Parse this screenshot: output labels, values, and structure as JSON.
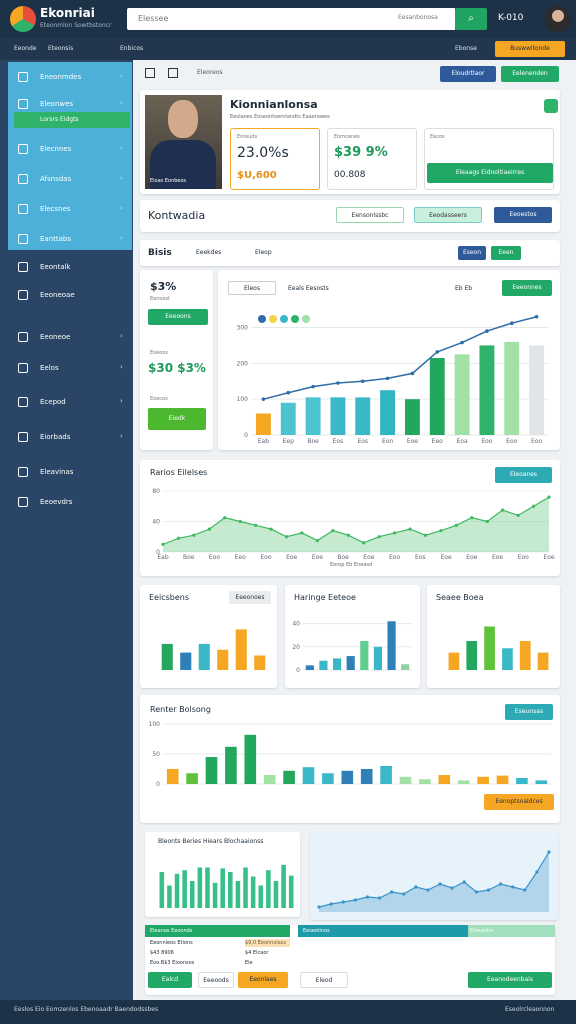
{
  "header": {
    "brand": "Ekonriai",
    "tagline": "Eteonmlon Sowtbstoncr",
    "search_placeholder": "Elessee",
    "search_hint": "Eesanbonosa",
    "user": "K-010"
  },
  "topnav": {
    "items": [
      "Eeonde",
      "Eteonsis",
      "Enbicos"
    ],
    "right_link": "Ebonse",
    "cta": "Buswwitonde"
  },
  "sidebar": {
    "items": [
      "Eneonmdes",
      "Eleonwes",
      "Elecnnes",
      "Afsnsdas",
      "Elecsnes",
      "Eanttabs",
      "Eeontalk",
      "Eeoneoae",
      "Eeoneoe",
      "Eelos",
      "Ecepod",
      "Eiorbads",
      "Eleavinas",
      "Eeoevdrs"
    ],
    "subitem": "Lorsrs Eidgts"
  },
  "toolbar": {
    "label": "Eleoreos",
    "buttons": [
      "Eloudrtlaor",
      "Eelenenden"
    ]
  },
  "profile": {
    "name": "Kionnianlonsa",
    "subtitle": "Eeolaoes Eoseontoernlandts Eaaonoees",
    "photo_caption": "Eloas Eonbeos",
    "stats": [
      {
        "label": "Eoreuds",
        "value": "23.0%s",
        "sub": "$U,600"
      },
      {
        "label": "Eomcenes",
        "value": "$39 9%",
        "sub": "00.808"
      },
      {
        "label": "Eecos",
        "button": "Eleaags Eidnoltiaeirres"
      }
    ]
  },
  "section": {
    "title": "Kontwadia",
    "buttons": [
      "Eensonlssbc",
      "Eeodasseers",
      "Eeoestos"
    ]
  },
  "tabs": {
    "title": "Bisis",
    "items": [
      "Eeekdes",
      "Eleop"
    ],
    "buttons": [
      "Eseon",
      "Eeen"
    ]
  },
  "summary": {
    "value": "$3%",
    "sub": "Eenoost",
    "button": "Eeeoons",
    "label": "Eoeoos",
    "value2": "$30 $3%",
    "sub2": "Eoecos",
    "button2": "Eiedk"
  },
  "charts": {
    "main": {
      "dropdown": "Eleos",
      "legend": "Eeals Eesosts",
      "icons": "Eb Eb",
      "button": "Eeeonnes",
      "categories": [
        "Eab",
        "Eep",
        "Boe",
        "Eos",
        "Eos",
        "Eon",
        "Eoe",
        "Eeo",
        "Eoa",
        "Eoo",
        "Eoo",
        "Eoo"
      ],
      "values": [
        60,
        90,
        105,
        105,
        105,
        125,
        100,
        215,
        225,
        250,
        260,
        250
      ],
      "colors": [
        "#f5a623",
        "#4cc3d0",
        "#4cc3d0",
        "#3bb8c8",
        "#3bb8c8",
        "#2fb6c2",
        "#23a75e",
        "#23a75e",
        "#a3e0a5",
        "#2fb36a",
        "#a3e0a5",
        "#e1e5e8"
      ],
      "line": [
        100,
        118,
        135,
        145,
        150,
        158,
        172,
        232,
        258,
        290,
        312,
        330
      ],
      "line_color": "#2f6ca8",
      "ylim": [
        0,
        360
      ],
      "yticks": [
        0,
        100,
        200,
        300
      ]
    },
    "area": {
      "title": "Rarios Eilelses",
      "button": "Eleoanes",
      "legend": "Eerop Eb Eneasd",
      "color": "#3fb85f",
      "values": [
        10,
        18,
        22,
        30,
        45,
        40,
        35,
        30,
        20,
        25,
        15,
        28,
        22,
        12,
        20,
        25,
        30,
        22,
        28,
        35,
        45,
        40,
        55,
        48,
        60,
        72
      ],
      "ylim": [
        0,
        80
      ],
      "yticks": [
        0,
        40,
        80
      ],
      "xlabels": [
        "Eab",
        "Boe",
        "Eoo",
        "Eeo",
        "Eoo",
        "Eoe",
        "Eoe",
        "Boe",
        "Eoe",
        "Eoo",
        "Eos",
        "Eoe",
        "Eoe",
        "Eoe",
        "Eoo",
        "Eoe"
      ]
    },
    "small1": {
      "title": "Eeicsbens",
      "button": "Eeeonoes",
      "values": [
        18,
        12,
        18,
        14,
        28,
        10
      ],
      "colors": [
        "#23a75e",
        "#2f7fb8",
        "#3bb8c8",
        "#f5a623",
        "#f5a623",
        "#f5a623"
      ],
      "ylim": [
        0,
        40
      ],
      "yticks": []
    },
    "small2": {
      "title": "Haringe Eeteoe",
      "values": [
        4,
        8,
        10,
        12,
        25,
        20,
        42,
        5
      ],
      "colors": [
        "#2f7fb8",
        "#3bb8c8",
        "#3bb8c8",
        "#2f7fb8",
        "#5fcf8f",
        "#3bb8c8",
        "#2f7fb8",
        "#8fd4a0"
      ],
      "ylim": [
        0,
        50
      ],
      "yticks": [
        0,
        20,
        40
      ]
    },
    "small3": {
      "title": "Seaee Boea",
      "values": [
        12,
        20,
        30,
        15,
        20,
        12
      ],
      "colors": [
        "#f5a623",
        "#23a75e",
        "#5fc23a",
        "#3bb8c8",
        "#f5a623",
        "#f5a623"
      ],
      "ylim": [
        0,
        40
      ],
      "yticks": []
    },
    "big": {
      "title": "Renter Bolsong",
      "button": "Eseunsas",
      "button2": "Eenoptsoaldces",
      "values": [
        25,
        18,
        45,
        62,
        82,
        15,
        22,
        28,
        18,
        22,
        25,
        30,
        12,
        8,
        15,
        6,
        12,
        14,
        10,
        6
      ],
      "colors": [
        "#f5a623",
        "#5fc23a",
        "#23a75e",
        "#23a75e",
        "#23a75e",
        "#a3e0a5",
        "#23a75e",
        "#3bb8c8",
        "#3bb8c8",
        "#2f7fb8",
        "#2f7fb8",
        "#3bb8c8",
        "#a3e0a5",
        "#a3e0a5",
        "#f5a623",
        "#a3e0a5",
        "#f5a623",
        "#f5a623",
        "#3bb8c8",
        "#3bb8c8"
      ],
      "ylim": [
        0,
        100
      ],
      "yticks": [
        0,
        50,
        100
      ]
    },
    "bottom_bars": {
      "title": "Bleonts Beries Hiears Blochaaionss",
      "color": "#39c08a",
      "values": [
        40,
        25,
        38,
        42,
        30,
        45,
        45,
        28,
        44,
        40,
        30,
        45,
        35,
        25,
        42,
        30,
        48,
        36
      ],
      "ylim": [
        0,
        60
      ],
      "yticks": []
    },
    "bottom_area": {
      "color": "#3a93c9",
      "values": [
        5,
        8,
        10,
        12,
        15,
        14,
        20,
        18,
        25,
        22,
        28,
        24,
        30,
        20,
        22,
        28,
        25,
        22,
        40,
        60
      ],
      "ylim": [
        0,
        70
      ],
      "yticks": []
    }
  },
  "table": {
    "headers": [
      "Eleanas Eeoonds",
      "Eeseoiinos",
      "Eleeanlrs"
    ],
    "rows": [
      [
        "Eeonnleos Etions",
        "$9,0 Eeonnolass"
      ],
      [
        "$43 8906",
        "$4 Elcaor"
      ],
      [
        "Eoo.B$3  Eioonsos",
        "Eie"
      ]
    ],
    "buttons": [
      "Ealcd",
      "Eeeoods",
      "Eeonlaes",
      "Eleod",
      "Eeanodeenbais"
    ]
  },
  "footer": {
    "left": "Eeslos Eio Eomzenlos Ebenoaadr Baendodssbes",
    "right": "Eseolrcleaonnon"
  }
}
